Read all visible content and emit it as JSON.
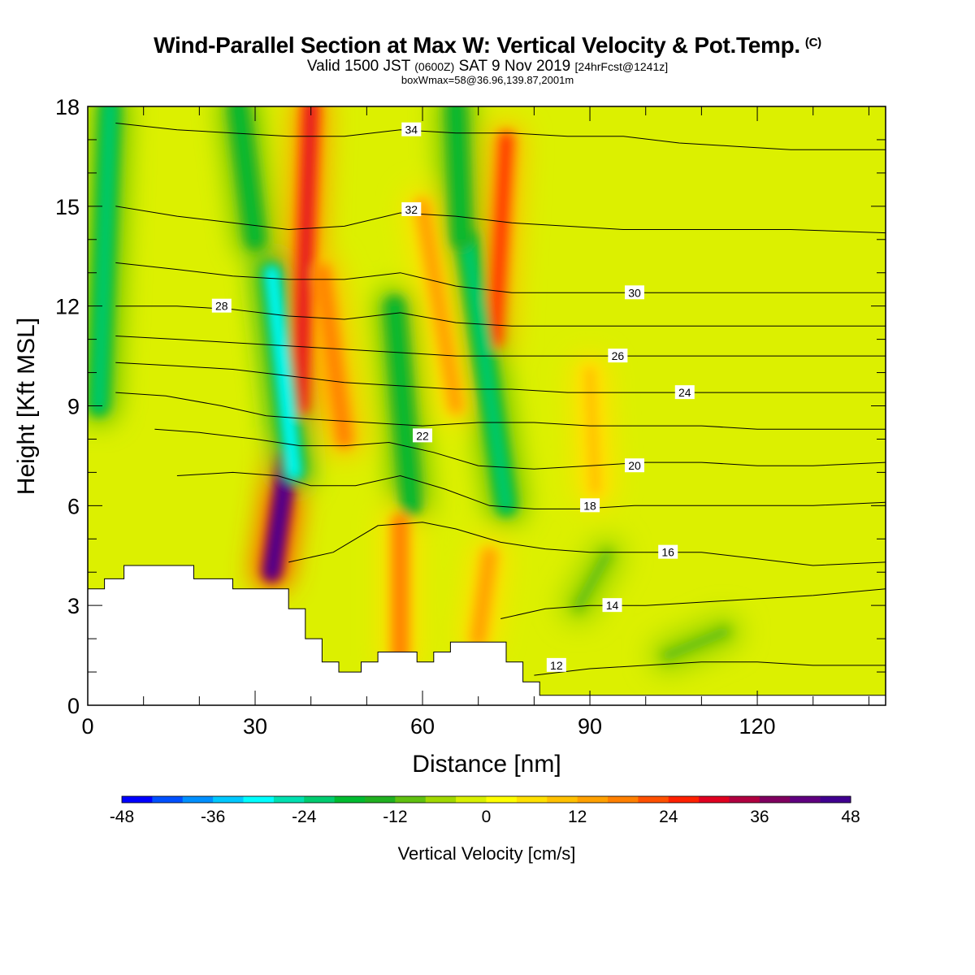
{
  "header": {
    "title": "Wind-Parallel Section at Max W: Vertical Velocity & Pot.Temp.",
    "title_mark": "(C)",
    "subtitle_a": "Valid 1500 JST",
    "subtitle_b": "(0600Z)",
    "subtitle_c": "SAT 9 Nov 2019",
    "subtitle_d": "[24hrFcst@1241z]",
    "note": "boxWmax=58@36.96,139.87,2001m"
  },
  "chart_data": {
    "type": "heatmap",
    "xlabel": "Distance [nm]",
    "ylabel": "Height [Kft MSL]",
    "xlim": [
      0,
      143
    ],
    "ylim": [
      0,
      18
    ],
    "x_ticks": [
      0,
      30,
      60,
      90,
      120
    ],
    "y_ticks": [
      0,
      3,
      6,
      9,
      12,
      15,
      18
    ],
    "colorbar": {
      "label": "Vertical Velocity [cm/s]",
      "min": -48,
      "max": 48,
      "step": 4,
      "tick_labels": [
        "-48",
        "-36",
        "-24",
        "-12",
        "0",
        "12",
        "24",
        "36",
        "48"
      ],
      "colors": [
        "#0000ff",
        "#0050ff",
        "#0090ff",
        "#00c8ff",
        "#00ffff",
        "#00e0b0",
        "#00cc70",
        "#00bb30",
        "#20b020",
        "#60c010",
        "#a0d800",
        "#d8f000",
        "#ffff00",
        "#ffe000",
        "#ffc000",
        "#ffa000",
        "#ff8000",
        "#ff5000",
        "#ff2000",
        "#e00020",
        "#b00040",
        "#800060",
        "#600080",
        "#400090"
      ]
    },
    "velocity_features": [
      {
        "kind": "updraft",
        "x0": 33,
        "z0": 4,
        "x1": 36,
        "z1": 7.5,
        "peak": 48
      },
      {
        "kind": "updraft",
        "x0": 38,
        "z0": 9,
        "x1": 40,
        "z1": 18,
        "peak": 28
      },
      {
        "kind": "updraft",
        "x0": 46,
        "z0": 8,
        "x1": 42,
        "z1": 13,
        "peak": 18
      },
      {
        "kind": "updraft",
        "x0": 73,
        "z0": 11,
        "x1": 75,
        "z1": 17,
        "peak": 24
      },
      {
        "kind": "updraft",
        "x0": 66,
        "z0": 9,
        "x1": 60,
        "z1": 15,
        "peak": 14
      },
      {
        "kind": "downdraft",
        "x0": 37,
        "z0": 7,
        "x1": 33,
        "z1": 13,
        "peak": -30
      },
      {
        "kind": "downdraft",
        "x0": 30,
        "z0": 14,
        "x1": 27,
        "z1": 18,
        "peak": -18
      },
      {
        "kind": "downdraft",
        "x0": 2,
        "z0": 9,
        "x1": 4,
        "z1": 18,
        "peak": -22
      },
      {
        "kind": "downdraft",
        "x0": 58,
        "z0": 6,
        "x1": 55,
        "z1": 12,
        "peak": -18
      },
      {
        "kind": "downdraft",
        "x0": 75,
        "z0": 6,
        "x1": 68,
        "z1": 14,
        "peak": -22
      },
      {
        "kind": "downdraft",
        "x0": 67,
        "z0": 14,
        "x1": 66,
        "z1": 18,
        "peak": -18
      },
      {
        "kind": "downdraft",
        "x0": 88,
        "z0": 3,
        "x1": 93,
        "z1": 4.5,
        "peak": -10
      },
      {
        "kind": "downdraft",
        "x0": 104,
        "z0": 1.5,
        "x1": 114,
        "z1": 2.2,
        "peak": -10
      },
      {
        "kind": "updraft",
        "x0": 91,
        "z0": 6.5,
        "x1": 90,
        "z1": 10,
        "peak": 10
      },
      {
        "kind": "updraft",
        "x0": 56,
        "z0": 1.5,
        "x1": 56,
        "z1": 5.5,
        "peak": 16
      },
      {
        "kind": "updraft",
        "x0": 70,
        "z0": 2,
        "x1": 72,
        "z1": 4.5,
        "peak": 12
      }
    ],
    "terrain": [
      [
        0,
        3.5
      ],
      [
        3,
        3.5
      ],
      [
        3,
        3.8
      ],
      [
        6.5,
        3.8
      ],
      [
        6.5,
        4.2
      ],
      [
        19,
        4.2
      ],
      [
        19,
        3.8
      ],
      [
        26,
        3.8
      ],
      [
        26,
        3.5
      ],
      [
        36,
        3.5
      ],
      [
        36,
        2.9
      ],
      [
        39,
        2.9
      ],
      [
        39,
        2.0
      ],
      [
        42,
        2.0
      ],
      [
        42,
        1.3
      ],
      [
        45,
        1.3
      ],
      [
        45,
        1.0
      ],
      [
        49,
        1.0
      ],
      [
        49,
        1.3
      ],
      [
        52,
        1.3
      ],
      [
        52,
        1.6
      ],
      [
        59,
        1.6
      ],
      [
        59,
        1.3
      ],
      [
        62,
        1.3
      ],
      [
        62,
        1.6
      ],
      [
        65,
        1.6
      ],
      [
        65,
        1.9
      ],
      [
        75,
        1.9
      ],
      [
        75,
        1.3
      ],
      [
        78,
        1.3
      ],
      [
        78,
        0.7
      ],
      [
        81,
        0.7
      ],
      [
        81,
        0.3
      ],
      [
        143,
        0.3
      ]
    ],
    "theta_contours": [
      {
        "value": 12,
        "points": [
          [
            80,
            0.9
          ],
          [
            90,
            1.1
          ],
          [
            100,
            1.2
          ],
          [
            110,
            1.3
          ],
          [
            120,
            1.3
          ],
          [
            130,
            1.2
          ],
          [
            143,
            1.2
          ]
        ],
        "label_at": [
          84,
          1.2
        ],
        "labeled": true
      },
      {
        "value": 14,
        "points": [
          [
            74,
            2.6
          ],
          [
            82,
            2.9
          ],
          [
            90,
            3.0
          ],
          [
            100,
            3.0
          ],
          [
            110,
            3.1
          ],
          [
            120,
            3.2
          ],
          [
            130,
            3.3
          ],
          [
            143,
            3.5
          ]
        ],
        "label_at": [
          94,
          3.0
        ],
        "labeled": true
      },
      {
        "value": 16,
        "points": [
          [
            36,
            4.3
          ],
          [
            44,
            4.6
          ],
          [
            52,
            5.4
          ],
          [
            60,
            5.5
          ],
          [
            66,
            5.3
          ],
          [
            74,
            4.9
          ],
          [
            82,
            4.7
          ],
          [
            90,
            4.6
          ],
          [
            100,
            4.6
          ],
          [
            110,
            4.6
          ],
          [
            120,
            4.4
          ],
          [
            130,
            4.2
          ],
          [
            143,
            4.3
          ]
        ],
        "label_at": [
          104,
          4.6
        ],
        "labeled": true
      },
      {
        "value": 18,
        "points": [
          [
            16,
            6.9
          ],
          [
            26,
            7.0
          ],
          [
            34,
            6.9
          ],
          [
            40,
            6.6
          ],
          [
            48,
            6.6
          ],
          [
            56,
            6.9
          ],
          [
            64,
            6.5
          ],
          [
            72,
            6.0
          ],
          [
            80,
            5.9
          ],
          [
            88,
            5.9
          ],
          [
            98,
            6.0
          ],
          [
            110,
            6.0
          ],
          [
            120,
            6.0
          ],
          [
            130,
            6.0
          ],
          [
            143,
            6.1
          ]
        ],
        "label_at": [
          90,
          6.0
        ],
        "labeled": true
      },
      {
        "value": 20,
        "points": [
          [
            12,
            8.3
          ],
          [
            20,
            8.2
          ],
          [
            30,
            8.0
          ],
          [
            38,
            7.8
          ],
          [
            46,
            7.8
          ],
          [
            54,
            7.9
          ],
          [
            62,
            7.6
          ],
          [
            70,
            7.2
          ],
          [
            80,
            7.1
          ],
          [
            90,
            7.2
          ],
          [
            100,
            7.3
          ],
          [
            110,
            7.3
          ],
          [
            120,
            7.2
          ],
          [
            130,
            7.2
          ],
          [
            143,
            7.3
          ]
        ],
        "label_at": [
          98,
          7.2
        ],
        "labeled": true
      },
      {
        "value": 22,
        "points": [
          [
            5,
            9.4
          ],
          [
            14,
            9.3
          ],
          [
            24,
            9.0
          ],
          [
            32,
            8.7
          ],
          [
            40,
            8.6
          ],
          [
            50,
            8.5
          ],
          [
            60,
            8.4
          ],
          [
            70,
            8.5
          ],
          [
            80,
            8.5
          ],
          [
            90,
            8.4
          ],
          [
            100,
            8.4
          ],
          [
            110,
            8.4
          ],
          [
            120,
            8.3
          ],
          [
            130,
            8.3
          ],
          [
            143,
            8.3
          ]
        ],
        "label_at": [
          60,
          8.1
        ],
        "labeled": true
      },
      {
        "value": 24,
        "points": [
          [
            5,
            10.3
          ],
          [
            16,
            10.2
          ],
          [
            26,
            10.1
          ],
          [
            36,
            9.9
          ],
          [
            46,
            9.7
          ],
          [
            56,
            9.6
          ],
          [
            66,
            9.5
          ],
          [
            76,
            9.5
          ],
          [
            86,
            9.4
          ],
          [
            96,
            9.4
          ],
          [
            106,
            9.4
          ],
          [
            116,
            9.4
          ],
          [
            126,
            9.4
          ],
          [
            143,
            9.4
          ]
        ],
        "label_at": [
          107,
          9.4
        ],
        "labeled": true
      },
      {
        "value": 26,
        "points": [
          [
            5,
            11.1
          ],
          [
            16,
            11.0
          ],
          [
            26,
            10.9
          ],
          [
            36,
            10.8
          ],
          [
            46,
            10.7
          ],
          [
            56,
            10.6
          ],
          [
            66,
            10.5
          ],
          [
            76,
            10.5
          ],
          [
            86,
            10.5
          ],
          [
            96,
            10.5
          ],
          [
            106,
            10.5
          ],
          [
            116,
            10.5
          ],
          [
            126,
            10.5
          ],
          [
            143,
            10.5
          ]
        ],
        "label_at": [
          95,
          10.5
        ],
        "labeled": true
      },
      {
        "value": 28,
        "points": [
          [
            5,
            12.0
          ],
          [
            16,
            12.0
          ],
          [
            26,
            11.9
          ],
          [
            36,
            11.7
          ],
          [
            46,
            11.6
          ],
          [
            56,
            11.8
          ],
          [
            66,
            11.5
          ],
          [
            76,
            11.4
          ],
          [
            86,
            11.4
          ],
          [
            96,
            11.4
          ],
          [
            106,
            11.4
          ],
          [
            116,
            11.4
          ],
          [
            126,
            11.4
          ],
          [
            143,
            11.4
          ]
        ],
        "label_at": [
          24,
          12.0
        ],
        "labeled": true
      },
      {
        "value": 30,
        "points": [
          [
            5,
            13.3
          ],
          [
            16,
            13.1
          ],
          [
            26,
            12.9
          ],
          [
            36,
            12.8
          ],
          [
            46,
            12.8
          ],
          [
            56,
            13.0
          ],
          [
            66,
            12.6
          ],
          [
            76,
            12.4
          ],
          [
            86,
            12.4
          ],
          [
            96,
            12.4
          ],
          [
            106,
            12.4
          ],
          [
            116,
            12.4
          ],
          [
            126,
            12.4
          ],
          [
            143,
            12.4
          ]
        ],
        "label_at": [
          98,
          12.4
        ],
        "labeled": true
      },
      {
        "value": 32,
        "points": [
          [
            5,
            15.0
          ],
          [
            16,
            14.7
          ],
          [
            26,
            14.5
          ],
          [
            36,
            14.3
          ],
          [
            46,
            14.4
          ],
          [
            56,
            14.8
          ],
          [
            66,
            14.7
          ],
          [
            76,
            14.5
          ],
          [
            86,
            14.4
          ],
          [
            96,
            14.3
          ],
          [
            106,
            14.3
          ],
          [
            116,
            14.3
          ],
          [
            126,
            14.3
          ],
          [
            143,
            14.2
          ]
        ],
        "label_at": [
          58,
          14.9
        ],
        "labeled": true
      },
      {
        "value": 34,
        "points": [
          [
            5,
            17.5
          ],
          [
            16,
            17.3
          ],
          [
            26,
            17.2
          ],
          [
            36,
            17.1
          ],
          [
            46,
            17.1
          ],
          [
            56,
            17.3
          ],
          [
            66,
            17.2
          ],
          [
            76,
            17.2
          ],
          [
            86,
            17.1
          ],
          [
            96,
            17.1
          ],
          [
            106,
            16.9
          ],
          [
            116,
            16.8
          ],
          [
            126,
            16.7
          ],
          [
            143,
            16.7
          ]
        ],
        "label_at": [
          58,
          17.3
        ],
        "labeled": true
      }
    ],
    "contour_labels": [
      "12",
      "14",
      "16",
      "18",
      "20",
      "22",
      "24",
      "26",
      "28",
      "30",
      "32",
      "34"
    ]
  }
}
